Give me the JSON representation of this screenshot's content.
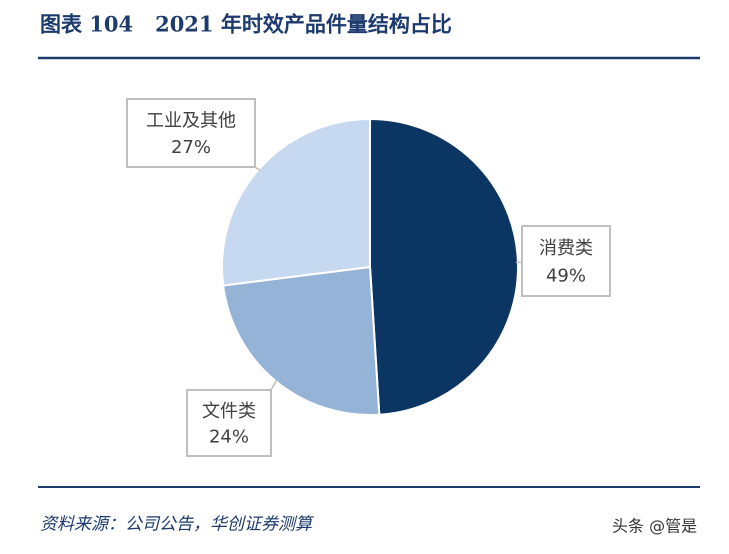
{
  "chart_data": {
    "type": "pie",
    "title": "图表 104   2021 年时效产品件量结构占比",
    "categories": [
      "消费类",
      "文件类",
      "工业及其他"
    ],
    "values": [
      49,
      24,
      27
    ],
    "value_labels": [
      "49%",
      "24%",
      "27%"
    ],
    "colors": [
      "#0b3663",
      "#95b3d7",
      "#c6d9f0"
    ],
    "source": "资料来源：公司公告，华创证券测算",
    "watermark": "头条 @管是"
  }
}
